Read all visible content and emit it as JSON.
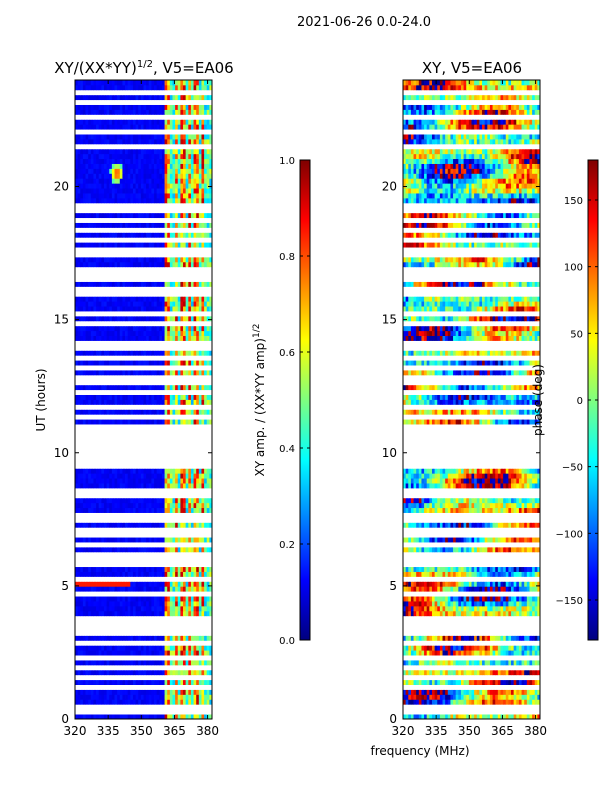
{
  "figure": {
    "suptitle": "2021-06-26 0.0-24.0",
    "shared_xlabel": "frequency (MHz)"
  },
  "colormap": {
    "name": "jet",
    "stops": [
      "#00007f",
      "#0000ff",
      "#007fff",
      "#00ffff",
      "#7fff7f",
      "#ffff00",
      "#ff7f00",
      "#ff0000",
      "#7f0000"
    ]
  },
  "chart_data": [
    {
      "type": "heatmap",
      "title": "XY/(XX*YY)",
      "title_sup": "1/2",
      "title_suffix": ", V5=EA06",
      "xlabel": "",
      "ylabel": "UT (hours)",
      "xlim": [
        320,
        382
      ],
      "ylim": [
        0,
        24
      ],
      "xticks": [
        320,
        335,
        350,
        365,
        380
      ],
      "yticks": [
        0,
        5,
        10,
        15,
        20
      ],
      "quantity": "amplitude",
      "colorbar": {
        "label": "XY amp. / (XX*YY amp)",
        "label_sup": "1/2",
        "range": [
          0.0,
          1.0
        ],
        "ticks": [
          "0.0",
          "0.2",
          "0.4",
          "0.6",
          "0.8",
          "1.0"
        ],
        "tick_values": [
          0.0,
          0.2,
          0.4,
          0.6,
          0.8,
          1.0
        ]
      },
      "features": {
        "background_value": 0.12,
        "active_band_mhz": [
          360,
          382
        ],
        "bright_channels_mhz": [
          362,
          366,
          369,
          372,
          375,
          378
        ],
        "hotspot": {
          "freq_mhz": 339,
          "ut_hours": 20.5,
          "value": 0.9
        },
        "rfi_line": {
          "ut_hours": 5.05,
          "freq_range_mhz": [
            320,
            345
          ],
          "value": 0.85
        },
        "flagged_ut_hours": [
          0.3,
          0.45,
          1.2,
          1.6,
          2.0,
          2.35,
          2.85,
          3.3,
          3.5,
          3.6,
          3.75,
          4.7,
          5.3,
          5.9,
          6.1,
          6.5,
          6.95,
          7.05,
          7.5,
          7.7,
          8.5,
          9.5,
          9.6,
          9.8,
          10.1,
          10.3,
          10.5,
          10.7,
          11.0,
          11.35,
          11.7,
          12.2,
          12.6,
          12.9,
          13.15,
          13.6,
          13.95,
          14.15,
          14.8,
          15.3,
          16.0,
          16.2,
          16.6,
          16.75,
          16.9,
          17.4,
          17.7,
          18.0,
          18.4,
          18.7,
          19.2,
          21.5,
          22.1,
          22.6,
          23.2,
          23.5
        ]
      }
    },
    {
      "type": "heatmap",
      "title": "XY, V5=EA06",
      "xlabel": "frequency (MHz)",
      "ylabel": "",
      "xlim": [
        320,
        382
      ],
      "ylim": [
        0,
        24
      ],
      "xticks": [
        320,
        335,
        350,
        365,
        380
      ],
      "yticks": [
        0,
        5,
        10,
        15,
        20
      ],
      "quantity": "phase",
      "colorbar": {
        "label": "phase (deg)",
        "range": [
          -180,
          180
        ],
        "ticks": [
          "−150",
          "−100",
          "−50",
          "0",
          "50",
          "100",
          "150"
        ],
        "tick_values": [
          -150,
          -100,
          -50,
          0,
          50,
          100,
          150
        ]
      },
      "features": {
        "flagged_ut_hours": [
          0.3,
          0.45,
          1.2,
          1.6,
          2.0,
          2.35,
          2.85,
          3.3,
          3.5,
          3.6,
          3.75,
          4.7,
          5.3,
          5.9,
          6.1,
          6.5,
          6.95,
          7.05,
          7.5,
          7.7,
          8.5,
          9.5,
          9.6,
          9.8,
          10.1,
          10.3,
          10.5,
          10.7,
          11.0,
          11.35,
          11.7,
          12.2,
          12.6,
          12.9,
          13.15,
          13.6,
          13.95,
          14.15,
          14.8,
          15.3,
          16.0,
          16.2,
          16.6,
          16.75,
          16.9,
          17.4,
          17.7,
          18.0,
          18.4,
          18.7,
          19.2,
          21.5,
          22.1,
          22.6,
          23.2,
          23.5
        ]
      }
    }
  ]
}
